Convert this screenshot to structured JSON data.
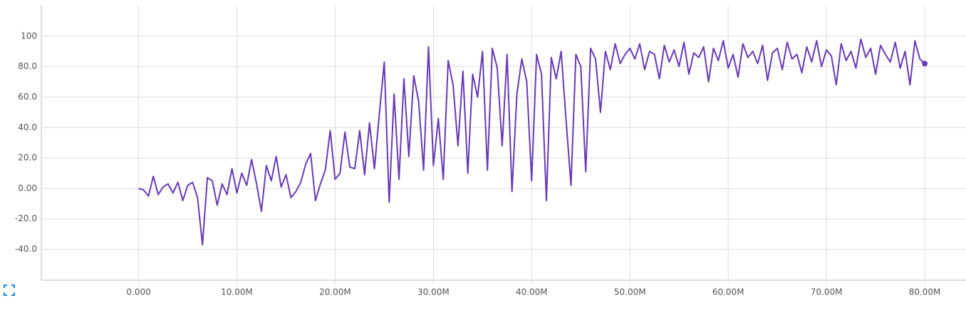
{
  "chart_data": {
    "type": "line",
    "color": "#673ab7",
    "grid": true,
    "end_marker": true,
    "x": [
      0,
      500000,
      1000000,
      1500000,
      2000000,
      2500000,
      3000000,
      3500000,
      4000000,
      4500000,
      5000000,
      5500000,
      6000000,
      6500000,
      7000000,
      7500000,
      8000000,
      8500000,
      9000000,
      9500000,
      10000000,
      10500000,
      11000000,
      11500000,
      12000000,
      12500000,
      13000000,
      13500000,
      14000000,
      14500000,
      15000000,
      15500000,
      16000000,
      16500000,
      17000000,
      17500000,
      18000000,
      18500000,
      19000000,
      19500000,
      20000000,
      20500000,
      21000000,
      21500000,
      22000000,
      22500000,
      23000000,
      23500000,
      24000000,
      24500000,
      25000000,
      25500000,
      26000000,
      26500000,
      27000000,
      27500000,
      28000000,
      28500000,
      29000000,
      29500000,
      30000000,
      30500000,
      31000000,
      31500000,
      32000000,
      32500000,
      33000000,
      33500000,
      34000000,
      34500000,
      35000000,
      35500000,
      36000000,
      36500000,
      37000000,
      37500000,
      38000000,
      38500000,
      39000000,
      39500000,
      40000000,
      40500000,
      41000000,
      41500000,
      42000000,
      42500000,
      43000000,
      43500000,
      44000000,
      44500000,
      45000000,
      45500000,
      46000000,
      46500000,
      47000000,
      47500000,
      48000000,
      48500000,
      49000000,
      49500000,
      50000000,
      50500000,
      51000000,
      51500000,
      52000000,
      52500000,
      53000000,
      53500000,
      54000000,
      54500000,
      55000000,
      55500000,
      56000000,
      56500000,
      57000000,
      57500000,
      58000000,
      58500000,
      59000000,
      59500000,
      60000000,
      60500000,
      61000000,
      61500000,
      62000000,
      62500000,
      63000000,
      63500000,
      64000000,
      64500000,
      65000000,
      65500000,
      66000000,
      66500000,
      67000000,
      67500000,
      68000000,
      68500000,
      69000000,
      69500000,
      70000000,
      70500000,
      71000000,
      71500000,
      72000000,
      72500000,
      73000000,
      73500000,
      74000000,
      74500000,
      75000000,
      75500000,
      76000000,
      76500000,
      77000000,
      77500000,
      78000000,
      78500000,
      79000000,
      79500000,
      80000000
    ],
    "values": [
      0,
      -1,
      -5,
      8,
      -4,
      1,
      3,
      -3,
      4,
      -8,
      2,
      4,
      -6,
      -37,
      7,
      5,
      -11,
      3,
      -4,
      13,
      -3,
      10,
      2,
      19,
      3,
      -15,
      15,
      5,
      21,
      1,
      9,
      -6,
      -2,
      4,
      16,
      23,
      -8,
      3,
      12,
      38,
      6,
      10,
      37,
      14,
      13,
      38,
      9,
      43,
      13,
      49,
      83,
      -9,
      62,
      6,
      72,
      21,
      74,
      57,
      12,
      93,
      15,
      46,
      6,
      84,
      68,
      28,
      77,
      10,
      75,
      60,
      90,
      12,
      92,
      79,
      28,
      88,
      -2,
      62,
      85,
      70,
      5,
      88,
      75,
      -8,
      86,
      72,
      90,
      45,
      2,
      88,
      80,
      11,
      92,
      85,
      50,
      90,
      78,
      95,
      82,
      88,
      92,
      85,
      95,
      78,
      90,
      88,
      72,
      94,
      83,
      91,
      80,
      96,
      75,
      89,
      86,
      93,
      70,
      92,
      84,
      97,
      79,
      88,
      73,
      95,
      86,
      90,
      82,
      94,
      71,
      89,
      92,
      78,
      96,
      85,
      88,
      76,
      93,
      83,
      97,
      80,
      91,
      87,
      68,
      95,
      84,
      90,
      79,
      98,
      86,
      92,
      75,
      94,
      88,
      83,
      96,
      79,
      90,
      68,
      97,
      85,
      82
    ],
    "xlim": [
      -9900000,
      84200000
    ],
    "ylim": [
      -60.3,
      120
    ],
    "xticks": [
      {
        "value": 0,
        "label": "0.000"
      },
      {
        "value": 10000000,
        "label": "10.00M"
      },
      {
        "value": 20000000,
        "label": "20.00M"
      },
      {
        "value": 30000000,
        "label": "30.00M"
      },
      {
        "value": 40000000,
        "label": "40.00M"
      },
      {
        "value": 50000000,
        "label": "50.00M"
      },
      {
        "value": 60000000,
        "label": "60.00M"
      },
      {
        "value": 70000000,
        "label": "70.00M"
      },
      {
        "value": 80000000,
        "label": "80.00M"
      }
    ],
    "yticks": [
      {
        "value": -40,
        "label": "-40.0"
      },
      {
        "value": -20,
        "label": "-20.0"
      },
      {
        "value": 0,
        "label": "0.00"
      },
      {
        "value": 20,
        "label": "20.0"
      },
      {
        "value": 40,
        "label": "40.0"
      },
      {
        "value": 60,
        "label": "60.0"
      },
      {
        "value": 80,
        "label": "80.0"
      },
      100
    ]
  }
}
